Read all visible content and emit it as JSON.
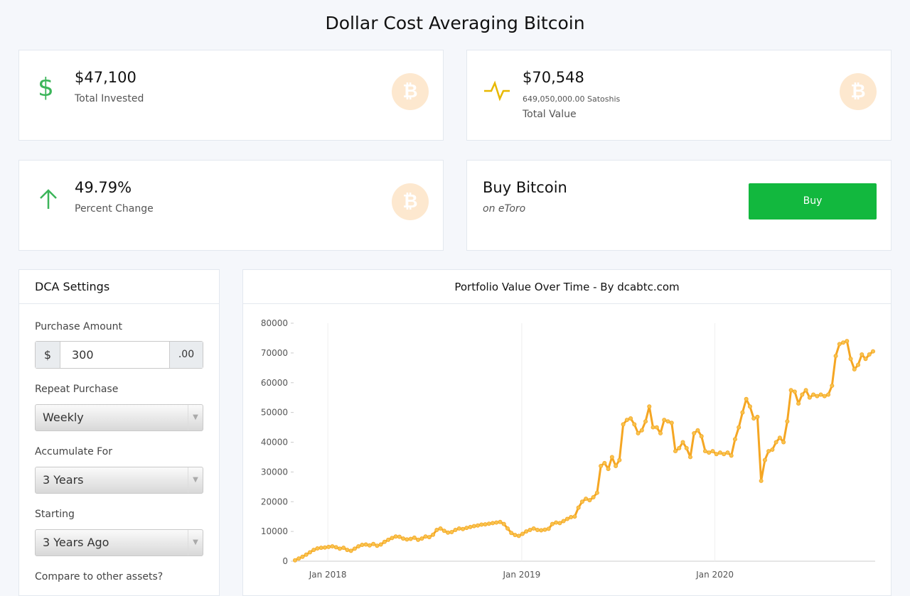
{
  "header": {
    "title": "Dollar Cost Averaging Bitcoin"
  },
  "stats": [
    {
      "value": "$47,100",
      "label": "Total Invested"
    },
    {
      "value": "$70,548",
      "detail": "649,050,000.00 Satoshis",
      "label": "Total Value"
    },
    {
      "value": "49.79%",
      "label": "Percent Change"
    }
  ],
  "buy": {
    "title": "Buy Bitcoin",
    "subtitle": "on eToro",
    "button": "Buy"
  },
  "settings": {
    "title": "DCA Settings",
    "amount": {
      "label": "Purchase Amount",
      "prefix": "$",
      "value": "300",
      "suffix": ".00"
    },
    "repeat": {
      "label": "Repeat Purchase",
      "value": "Weekly"
    },
    "accumulate": {
      "label": "Accumulate For",
      "value": "3 Years"
    },
    "starting": {
      "label": "Starting",
      "value": "3 Years Ago"
    },
    "compare": {
      "label": "Compare to other assets?"
    }
  },
  "chart_data": {
    "type": "line",
    "title": "Portfolio Value Over Time - By dcabtc.com",
    "color": "#f5a623",
    "grid": true,
    "values": [
      300,
      900,
      1500,
      2200,
      3000,
      3800,
      4300,
      4500,
      4600,
      4800,
      5000,
      4700,
      4200,
      4500,
      3800,
      3500,
      4200,
      5000,
      5500,
      5600,
      5300,
      5800,
      5200,
      5600,
      6500,
      7200,
      7800,
      8300,
      8200,
      7600,
      7300,
      7500,
      7900,
      7200,
      7600,
      8300,
      8100,
      8900,
      10500,
      11000,
      10200,
      9600,
      9800,
      10500,
      11000,
      10800,
      11200,
      11500,
      11800,
      12000,
      12300,
      12400,
      12600,
      12800,
      13000,
      13200,
      12500,
      11000,
      9500,
      8800,
      8500,
      9200,
      10000,
      10500,
      11000,
      10500,
      10400,
      10600,
      10900,
      12500,
      13000,
      12800,
      13500,
      14200,
      14800,
      15000,
      18000,
      20000,
      21000,
      20500,
      21500,
      23000,
      32000,
      33000,
      31000,
      35000,
      32000,
      34000,
      46000,
      47500,
      48000,
      46000,
      43000,
      44000,
      47000,
      52000,
      45000,
      45000,
      43000,
      47500,
      47000,
      46500,
      37000,
      38000,
      40000,
      38000,
      35000,
      43000,
      44000,
      42000,
      37000,
      36500,
      37000,
      36000,
      36500,
      36000,
      36500,
      35500,
      41000,
      45000,
      50000,
      54500,
      52000,
      48000,
      48500,
      27000,
      34000,
      37000,
      37500,
      40000,
      41500,
      40000,
      47000,
      57500,
      57000,
      53000,
      56000,
      57500,
      55000,
      56000,
      55500,
      56000,
      55500,
      56000,
      59000,
      69000,
      73000,
      73500,
      74000,
      68000,
      64500,
      66000,
      69500,
      68000,
      69500,
      70548
    ],
    "xlim": [
      0,
      155
    ],
    "xticks": [
      {
        "value": 8.8,
        "label": "Jan 2018"
      },
      {
        "value": 60.8,
        "label": "Jan 2019"
      },
      {
        "value": 112.6,
        "label": "Jan 2020"
      }
    ],
    "ylim": [
      0,
      80000
    ],
    "yticks": [
      0,
      10000,
      20000,
      30000,
      40000,
      50000,
      60000,
      70000,
      80000
    ]
  }
}
